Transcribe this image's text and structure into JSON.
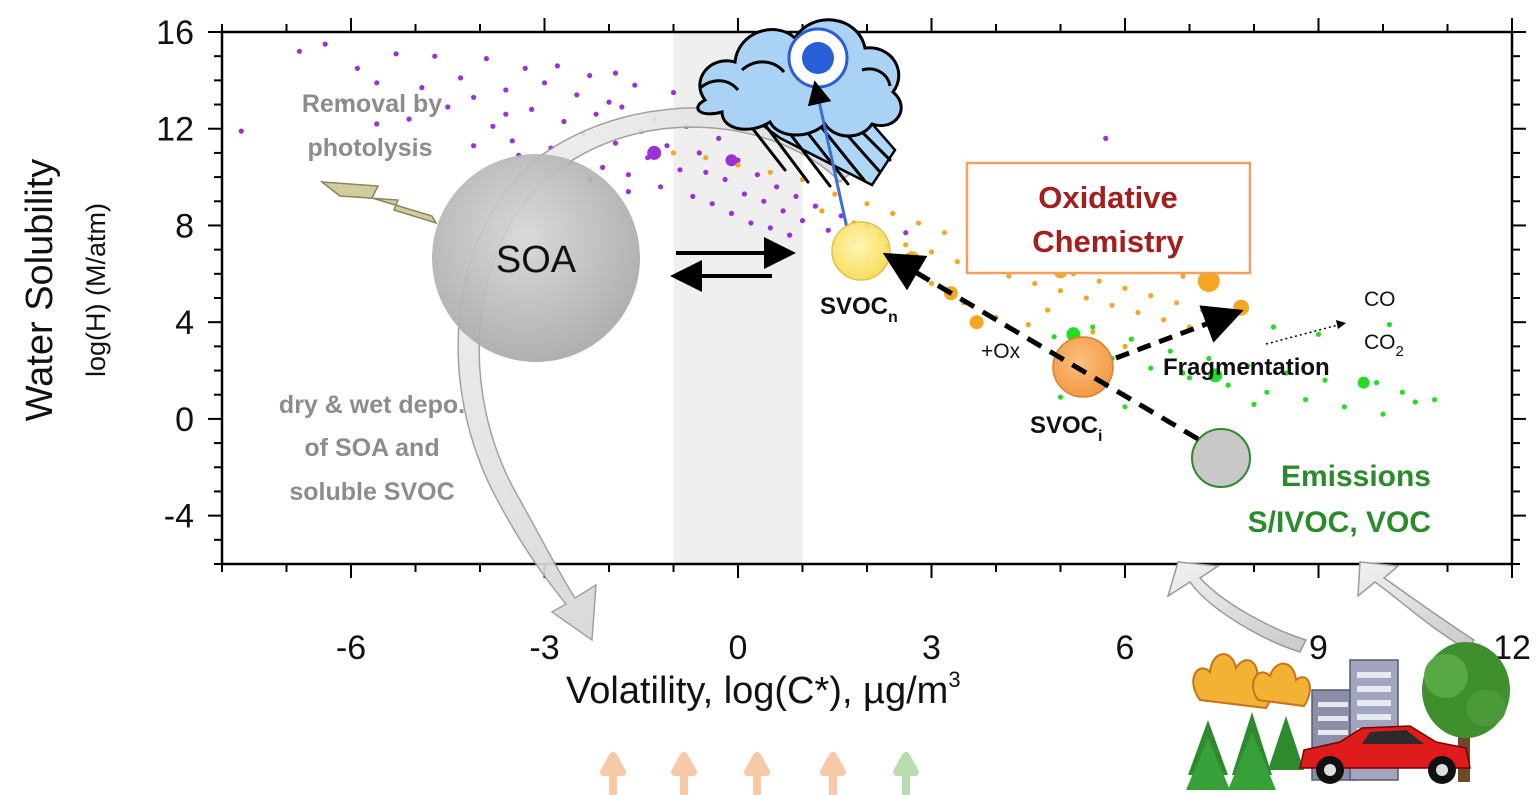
{
  "chart_data": {
    "type": "scatter",
    "xlabel_main": "Volatility,  log(C*), µg/m",
    "xlabel_sup": "3",
    "ylabel_main": "Water Solubility",
    "ylabel_sub": "log(H) (M/atm)",
    "xlim": [
      -8,
      12
    ],
    "ylim": [
      -6,
      16
    ],
    "x_ticks": [
      "-6",
      "-3",
      "0",
      "3",
      "6",
      "9",
      "12"
    ],
    "y_ticks": [
      "16",
      "12",
      "8",
      "4",
      "0",
      "-4"
    ],
    "shaded_band_x": [
      -1,
      1
    ],
    "series": [
      {
        "color": "#9b30d9",
        "points": [
          [
            -7.7,
            11.9
          ],
          [
            -6.8,
            15.2
          ],
          [
            -6.4,
            15.5
          ],
          [
            -5.9,
            14.5
          ],
          [
            -5.6,
            13.9
          ],
          [
            -5.3,
            15.1
          ],
          [
            -5.1,
            12.4
          ],
          [
            -4.9,
            13.7
          ],
          [
            -4.7,
            15.0
          ],
          [
            -4.5,
            12.9
          ],
          [
            -4.3,
            14.1
          ],
          [
            -4.1,
            13.3
          ],
          [
            -3.9,
            14.9
          ],
          [
            -3.8,
            12.1
          ],
          [
            -3.6,
            13.6
          ],
          [
            -3.5,
            11.5
          ],
          [
            -3.3,
            14.5
          ],
          [
            -3.2,
            12.8
          ],
          [
            -3.0,
            13.9
          ],
          [
            -2.9,
            11.2
          ],
          [
            -2.8,
            14.6
          ],
          [
            -2.7,
            12.3
          ],
          [
            -2.6,
            10.6
          ],
          [
            -2.5,
            13.4
          ],
          [
            -2.4,
            11.8
          ],
          [
            -2.3,
            14.2
          ],
          [
            -2.2,
            12.6
          ],
          [
            -2.1,
            10.4
          ],
          [
            -2.0,
            13.1
          ],
          [
            -1.9,
            11.4
          ],
          [
            -1.8,
            12.9
          ],
          [
            -1.7,
            10.1
          ],
          [
            -1.6,
            13.8
          ],
          [
            -1.5,
            11.9
          ],
          [
            -1.4,
            10.8
          ],
          [
            -1.3,
            12.4
          ],
          [
            -1.2,
            9.6
          ],
          [
            -1.1,
            11.3
          ],
          [
            -1.0,
            13.5
          ],
          [
            -0.9,
            10.3
          ],
          [
            -0.8,
            12.1
          ],
          [
            -0.7,
            9.2
          ],
          [
            -0.6,
            11.0
          ],
          [
            -0.5,
            10.2
          ],
          [
            -0.4,
            8.9
          ],
          [
            -0.3,
            11.6
          ],
          [
            -0.2,
            9.9
          ],
          [
            -0.1,
            8.5
          ],
          [
            0.0,
            10.7
          ],
          [
            0.1,
            9.3
          ],
          [
            0.2,
            8.1
          ],
          [
            0.3,
            10.1
          ],
          [
            0.4,
            9.0
          ],
          [
            0.5,
            7.9
          ],
          [
            0.6,
            9.6
          ],
          [
            0.7,
            8.6
          ],
          [
            0.8,
            7.6
          ],
          [
            0.9,
            9.2
          ],
          [
            1.0,
            8.2
          ],
          [
            1.2,
            8.8
          ],
          [
            1.4,
            7.8
          ],
          [
            1.6,
            8.4
          ],
          [
            1.8,
            7.3
          ],
          [
            2.0,
            8.0
          ],
          [
            2.3,
            7.1
          ],
          [
            2.6,
            7.7
          ],
          [
            -3.4,
            10.9
          ],
          [
            -2.9,
            10.3
          ],
          [
            -2.3,
            9.9
          ],
          [
            -1.7,
            9.4
          ],
          [
            -4.1,
            11.3
          ],
          [
            -3.6,
            12.6
          ],
          [
            -5.6,
            12.2
          ],
          [
            -6.1,
            13.1
          ],
          [
            0.8,
            11.7
          ],
          [
            1.4,
            11.0
          ],
          [
            2.1,
            10.5
          ],
          [
            -0.2,
            12.6
          ],
          [
            -1.9,
            14.3
          ],
          [
            5.7,
            11.6
          ]
        ]
      },
      {
        "color": "#f5a623",
        "points": [
          [
            -1.0,
            11.0
          ],
          [
            -0.5,
            10.8
          ],
          [
            0.0,
            10.5
          ],
          [
            0.5,
            10.2
          ],
          [
            1.0,
            9.9
          ],
          [
            1.3,
            8.6
          ],
          [
            1.5,
            9.3
          ],
          [
            1.8,
            8.1
          ],
          [
            2.0,
            8.9
          ],
          [
            2.2,
            7.6
          ],
          [
            2.4,
            8.5
          ],
          [
            2.6,
            7.2
          ],
          [
            2.8,
            8.1
          ],
          [
            3.0,
            6.9
          ],
          [
            3.2,
            7.7
          ],
          [
            3.4,
            6.5
          ],
          [
            3.6,
            7.4
          ],
          [
            3.8,
            6.2
          ],
          [
            4.0,
            7.0
          ],
          [
            4.2,
            5.9
          ],
          [
            4.4,
            6.7
          ],
          [
            4.6,
            5.6
          ],
          [
            4.8,
            6.3
          ],
          [
            5.0,
            5.3
          ],
          [
            5.2,
            6.0
          ],
          [
            5.4,
            5.0
          ],
          [
            5.6,
            5.7
          ],
          [
            5.8,
            4.7
          ],
          [
            6.0,
            5.4
          ],
          [
            6.2,
            4.4
          ],
          [
            6.4,
            5.1
          ],
          [
            6.6,
            4.1
          ],
          [
            6.8,
            4.8
          ],
          [
            7.0,
            3.8
          ],
          [
            7.2,
            4.5
          ],
          [
            7.4,
            3.5
          ],
          [
            7.6,
            4.2
          ],
          [
            7.8,
            4.7
          ],
          [
            3.0,
            5.6
          ],
          [
            3.5,
            4.8
          ],
          [
            4.0,
            4.2
          ],
          [
            4.5,
            3.9
          ],
          [
            2.5,
            6.1
          ],
          [
            2.0,
            6.6
          ],
          [
            1.5,
            7.2
          ],
          [
            6.9,
            5.9
          ],
          [
            5.9,
            6.5
          ],
          [
            4.9,
            7.2
          ],
          [
            3.9,
            8.0
          ],
          [
            6.0,
            3.0
          ],
          [
            5.5,
            3.6
          ],
          [
            4.8,
            4.5
          ],
          [
            7.4,
            6.0
          ],
          [
            6.3,
            6.8
          ]
        ]
      },
      {
        "color": "#22dd22",
        "points": [
          [
            4.9,
            3.4
          ],
          [
            5.2,
            2.9
          ],
          [
            5.5,
            3.8
          ],
          [
            5.8,
            2.5
          ],
          [
            6.1,
            3.3
          ],
          [
            6.4,
            2.1
          ],
          [
            6.7,
            2.8
          ],
          [
            7.0,
            1.7
          ],
          [
            7.3,
            2.5
          ],
          [
            7.6,
            1.4
          ],
          [
            7.9,
            2.2
          ],
          [
            8.2,
            1.1
          ],
          [
            8.5,
            1.9
          ],
          [
            8.8,
            0.8
          ],
          [
            9.1,
            1.6
          ],
          [
            9.4,
            0.5
          ],
          [
            9.7,
            1.4
          ],
          [
            10.0,
            0.2
          ],
          [
            10.3,
            1.1
          ],
          [
            10.5,
            0.7
          ],
          [
            9.9,
            1.5
          ],
          [
            6.9,
            1.9
          ],
          [
            5.0,
            0.9
          ],
          [
            5.4,
            1.3
          ],
          [
            6.0,
            0.5
          ],
          [
            8.0,
            0.6
          ],
          [
            9.0,
            3.5
          ],
          [
            8.3,
            3.8
          ],
          [
            10.1,
            3.9
          ],
          [
            10.8,
            0.8
          ]
        ]
      }
    ]
  },
  "labels": {
    "removal_line1": "Removal by",
    "removal_line2": "photolysis",
    "soa": "SOA",
    "depo_line1": "dry & wet depo.",
    "depo_line2": "of SOA and",
    "depo_line3": "soluble SVOC",
    "oxidative_line1": "Oxidative",
    "oxidative_line2": "Chemistry",
    "svoc_n": "SVOC",
    "svoc_n_sub": "n",
    "svoc_i": "SVOC",
    "svoc_i_sub": "i",
    "plus_ox": "+Ox",
    "fragmentation": "Fragmentation",
    "co": "CO",
    "co2": "CO",
    "co2_sub": "2",
    "emissions_line1": "Emissions",
    "emissions_line2": "S/IVOC, VOC"
  },
  "colors": {
    "purple": "#9b30d9",
    "orange": "#f5a623",
    "green": "#22dd22",
    "box_border": "#f0a060",
    "box_text": "#a31f1f",
    "emission_text": "#2b8a2b",
    "svoc_n_fill": "#fde97a",
    "svoc_i_fill": "#f7a35a",
    "emission_fill": "#c8c8c8",
    "soa_fill": "#b9b9b9"
  },
  "icons": [
    "cloud-rain-icon",
    "lightning-icon",
    "fire-trees-icon",
    "buildings-icon",
    "car-icon",
    "tree-icon"
  ]
}
